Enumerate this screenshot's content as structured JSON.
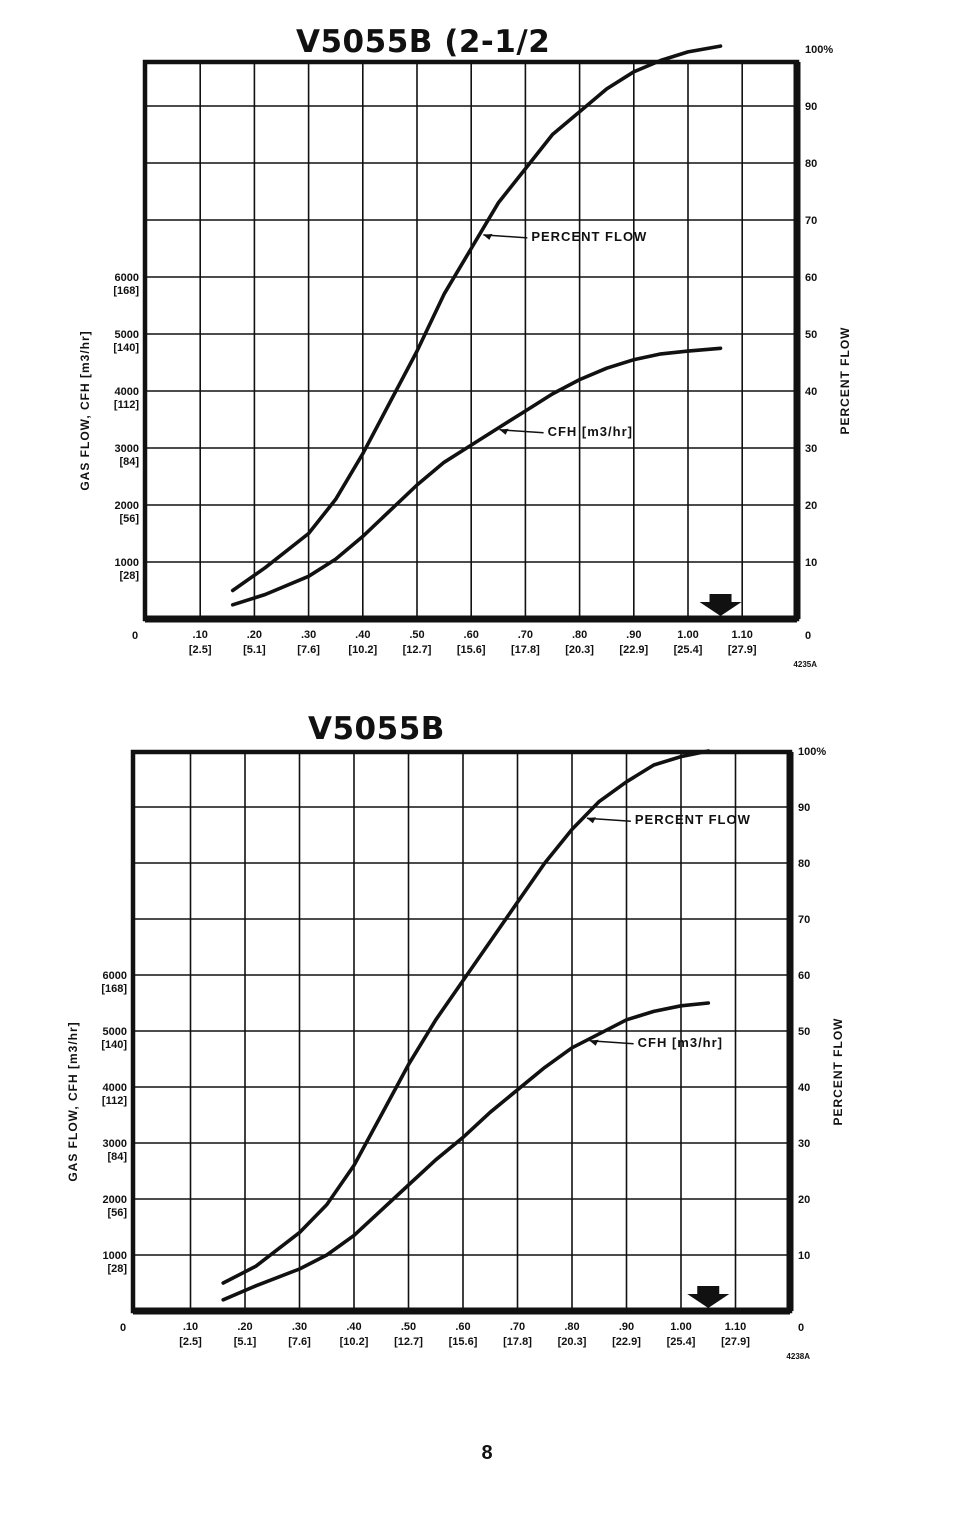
{
  "page_number": "8",
  "chart_data": [
    {
      "type": "line",
      "title": "V5055B (2-1/2",
      "figure_code": "4235A",
      "left_axis_label": "GAS FLOW, CFH [m3/hr]",
      "right_axis_label": "PERCENT FLOW",
      "x_zero_label": "0",
      "x_tick_labels": [
        ".10",
        ".20",
        ".30",
        ".40",
        ".50",
        ".60",
        ".70",
        ".80",
        ".90",
        "1.00",
        "1.10"
      ],
      "x_tick_sublabels": [
        "[2.5]",
        "[5.1]",
        "[7.6]",
        "[10.2]",
        "[12.7]",
        "[15.6]",
        "[17.8]",
        "[20.3]",
        "[22.9]",
        "[25.4]",
        "[27.9]"
      ],
      "xlim": [
        0,
        1.2
      ],
      "left_tick_labels": [
        "1000",
        "2000",
        "3000",
        "4000",
        "5000",
        "6000"
      ],
      "left_tick_sublabels": [
        "[28]",
        "[56]",
        "[84]",
        "[112]",
        "[140]",
        "[168]"
      ],
      "left_ylim": [
        0,
        10000
      ],
      "right_tick_labels": [
        "0",
        "10",
        "20",
        "30",
        "40",
        "50",
        "60",
        "70",
        "80",
        "90",
        "100%"
      ],
      "right_ylim": [
        0,
        100
      ],
      "grid": true,
      "marker_arrow_x": 1.06,
      "series": [
        {
          "name": "PERCENT FLOW",
          "axis": "right",
          "points": [
            [
              0.16,
              5
            ],
            [
              0.22,
              9
            ],
            [
              0.3,
              15
            ],
            [
              0.35,
              21
            ],
            [
              0.4,
              29
            ],
            [
              0.45,
              38
            ],
            [
              0.5,
              47
            ],
            [
              0.55,
              57
            ],
            [
              0.6,
              65
            ],
            [
              0.65,
              73
            ],
            [
              0.7,
              79
            ],
            [
              0.75,
              85
            ],
            [
              0.8,
              89
            ],
            [
              0.85,
              93
            ],
            [
              0.9,
              96
            ],
            [
              0.95,
              98
            ],
            [
              1.0,
              99.5
            ],
            [
              1.06,
              100.5
            ]
          ]
        },
        {
          "name": "CFH [m3/hr]",
          "axis": "left",
          "points": [
            [
              0.16,
              250
            ],
            [
              0.22,
              430
            ],
            [
              0.3,
              750
            ],
            [
              0.35,
              1050
            ],
            [
              0.4,
              1450
            ],
            [
              0.45,
              1900
            ],
            [
              0.5,
              2350
            ],
            [
              0.55,
              2750
            ],
            [
              0.6,
              3050
            ],
            [
              0.65,
              3350
            ],
            [
              0.7,
              3650
            ],
            [
              0.75,
              3950
            ],
            [
              0.8,
              4200
            ],
            [
              0.85,
              4400
            ],
            [
              0.9,
              4550
            ],
            [
              0.95,
              4650
            ],
            [
              1.0,
              4700
            ],
            [
              1.06,
              4750
            ]
          ]
        }
      ],
      "annotations": [
        {
          "text": "PERCENT FLOW",
          "series": 0,
          "x": 0.615
        },
        {
          "text": "CFH [m3/hr]",
          "series": 1,
          "x": 0.645
        }
      ]
    },
    {
      "type": "line",
      "title": "V5055B",
      "figure_code": "4238A",
      "left_axis_label": "GAS FLOW, CFH [m3/hr]",
      "right_axis_label": "PERCENT FLOW",
      "x_zero_label": "0",
      "x_tick_labels": [
        ".10",
        ".20",
        ".30",
        ".40",
        ".50",
        ".60",
        ".70",
        ".80",
        ".90",
        "1.00",
        "1.10"
      ],
      "x_tick_sublabels": [
        "[2.5]",
        "[5.1]",
        "[7.6]",
        "[10.2]",
        "[12.7]",
        "[15.6]",
        "[17.8]",
        "[20.3]",
        "[22.9]",
        "[25.4]",
        "[27.9]"
      ],
      "xlim": [
        0,
        1.2
      ],
      "left_tick_labels": [
        "1000",
        "2000",
        "3000",
        "4000",
        "5000",
        "6000"
      ],
      "left_tick_sublabels": [
        "[28]",
        "[56]",
        "[84]",
        "[112]",
        "[140]",
        "[168]"
      ],
      "left_ylim": [
        0,
        10000
      ],
      "right_tick_labels": [
        "0",
        "10",
        "20",
        "30",
        "40",
        "50",
        "60",
        "70",
        "80",
        "90",
        "100%"
      ],
      "right_ylim": [
        0,
        100
      ],
      "grid": true,
      "marker_arrow_x": 1.05,
      "series": [
        {
          "name": "PERCENT FLOW",
          "axis": "right",
          "points": [
            [
              0.16,
              5
            ],
            [
              0.22,
              8
            ],
            [
              0.3,
              14
            ],
            [
              0.35,
              19
            ],
            [
              0.4,
              26
            ],
            [
              0.45,
              35
            ],
            [
              0.5,
              44
            ],
            [
              0.55,
              52
            ],
            [
              0.6,
              59
            ],
            [
              0.65,
              66
            ],
            [
              0.7,
              73
            ],
            [
              0.75,
              80
            ],
            [
              0.8,
              86
            ],
            [
              0.85,
              91
            ],
            [
              0.9,
              94.5
            ],
            [
              0.95,
              97.5
            ],
            [
              1.0,
              99
            ],
            [
              1.05,
              100
            ]
          ]
        },
        {
          "name": "CFH [m3/hr]",
          "axis": "left",
          "points": [
            [
              0.16,
              200
            ],
            [
              0.22,
              450
            ],
            [
              0.3,
              750
            ],
            [
              0.35,
              1000
            ],
            [
              0.4,
              1350
            ],
            [
              0.45,
              1800
            ],
            [
              0.5,
              2250
            ],
            [
              0.55,
              2700
            ],
            [
              0.6,
              3100
            ],
            [
              0.65,
              3550
            ],
            [
              0.7,
              3950
            ],
            [
              0.75,
              4350
            ],
            [
              0.8,
              4700
            ],
            [
              0.85,
              4950
            ],
            [
              0.9,
              5200
            ],
            [
              0.95,
              5350
            ],
            [
              1.0,
              5450
            ],
            [
              1.05,
              5500
            ]
          ]
        }
      ],
      "annotations": [
        {
          "text": "PERCENT FLOW",
          "series": 0,
          "x": 0.82
        },
        {
          "text": "CFH [m3/hr]",
          "series": 1,
          "x": 0.825
        }
      ]
    }
  ]
}
